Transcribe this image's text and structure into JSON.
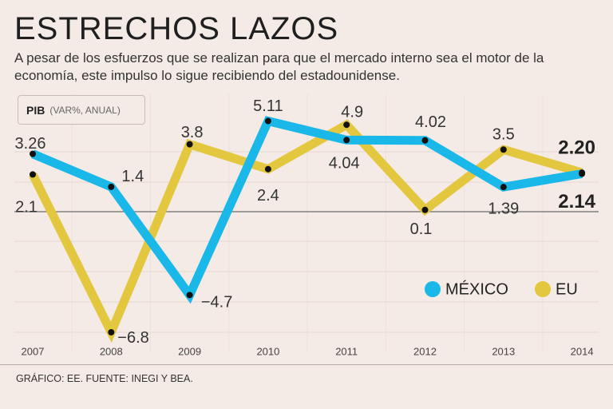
{
  "header": {
    "title": "ESTRECHOS LAZOS",
    "subtitle": "A pesar de los esfuerzos que se realizan para que el mercado interno sea el motor de la economía, este impulso lo sigue recibiendo del estadounidense."
  },
  "pib_label": {
    "main": "PIB",
    "sub": "(VAR%, ANUAL)"
  },
  "source": "GRÁFICO: EE. FUENTE: INEGI Y BEA.",
  "chart_data": {
    "type": "line",
    "title": "PIB (VAR%, ANUAL)",
    "xlabel": "",
    "ylabel": "",
    "categories": [
      "2007",
      "2008",
      "2009",
      "2010",
      "2011",
      "2012",
      "2013",
      "2014"
    ],
    "ylim": [
      -8.5,
      8.5
    ],
    "series": [
      {
        "name": "MÉXICO",
        "color": "#1ab8e8",
        "values": [
          3.26,
          1.4,
          -4.7,
          5.11,
          4.04,
          4.02,
          1.39,
          2.14
        ],
        "labels": [
          "3.26",
          "1.4",
          "−4.7",
          "5.11",
          "4.04",
          "4.02",
          "1.39",
          "2.14"
        ]
      },
      {
        "name": "EU",
        "color": "#e3c73f",
        "values": [
          2.1,
          -6.8,
          3.8,
          2.4,
          4.9,
          0.1,
          3.5,
          2.2
        ],
        "labels": [
          "2.1",
          "−6.8",
          "3.8",
          "2.4",
          "4.9",
          "0.1",
          "3.5",
          "2.20"
        ]
      }
    ],
    "legend": {
      "position": "bottom-right",
      "entries": [
        "MÉXICO",
        "EU"
      ]
    }
  }
}
